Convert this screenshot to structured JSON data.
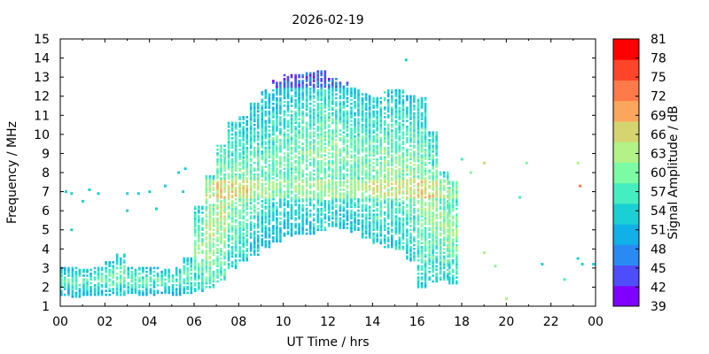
{
  "chart_data": {
    "type": "heatmap",
    "title": "2026-02-19",
    "xlabel": "UT Time / hrs",
    "ylabel": "Frequency / MHz",
    "colorbar_label": "Signal Amplitude / dB",
    "xlim": [
      0,
      24
    ],
    "ylim": [
      1,
      15
    ],
    "x_ticks": [
      "00",
      "02",
      "04",
      "06",
      "08",
      "10",
      "12",
      "14",
      "16",
      "18",
      "20",
      "22",
      "00"
    ],
    "y_ticks": [
      "1",
      "2",
      "3",
      "4",
      "5",
      "6",
      "7",
      "8",
      "9",
      "10",
      "11",
      "12",
      "13",
      "14",
      "15"
    ],
    "colorbar_ticks": [
      "81",
      "78",
      "75",
      "72",
      "69",
      "66",
      "63",
      "60",
      "57",
      "54",
      "51",
      "48",
      "45",
      "42",
      "39"
    ],
    "colorbar_range": [
      39,
      81
    ],
    "colormap": [
      "#7f00ff",
      "#4f4dfb",
      "#2a8af3",
      "#11b0e8",
      "#1bd0d5",
      "#45eec1",
      "#7bfca4",
      "#b2f287",
      "#d6d46e",
      "#fca55c",
      "#ff7a49",
      "#ff4529",
      "#ff0000"
    ],
    "series": [
      {
        "x": 0.0,
        "fmin": 1.6,
        "fmax": 3.1,
        "amp": 54
      },
      {
        "x": 0.5,
        "fmin": 1.5,
        "fmax": 3.1,
        "amp": 55
      },
      {
        "x": 1.0,
        "fmin": 1.6,
        "fmax": 3.0,
        "amp": 54
      },
      {
        "x": 1.5,
        "fmin": 1.6,
        "fmax": 3.1,
        "amp": 55
      },
      {
        "x": 2.0,
        "fmin": 1.6,
        "fmax": 3.4,
        "amp": 56
      },
      {
        "x": 2.5,
        "fmin": 1.6,
        "fmax": 3.8,
        "amp": 56
      },
      {
        "x": 3.0,
        "fmin": 1.7,
        "fmax": 3.1,
        "amp": 55
      },
      {
        "x": 3.5,
        "fmin": 1.6,
        "fmax": 3.1,
        "amp": 55
      },
      {
        "x": 4.0,
        "fmin": 1.6,
        "fmax": 3.1,
        "amp": 54
      },
      {
        "x": 4.5,
        "fmin": 1.7,
        "fmax": 3.0,
        "amp": 55
      },
      {
        "x": 5.0,
        "fmin": 1.6,
        "fmax": 3.1,
        "amp": 54
      },
      {
        "x": 5.5,
        "fmin": 1.7,
        "fmax": 3.6,
        "amp": 55
      },
      {
        "x": 6.0,
        "fmin": 1.8,
        "fmax": 6.2,
        "amp": 58
      },
      {
        "x": 6.5,
        "fmin": 2.0,
        "fmax": 7.8,
        "amp": 60
      },
      {
        "x": 7.0,
        "fmin": 2.3,
        "fmax": 9.4,
        "amp": 60
      },
      {
        "x": 7.5,
        "fmin": 3.0,
        "fmax": 10.6,
        "amp": 58
      },
      {
        "x": 8.0,
        "fmin": 3.4,
        "fmax": 10.9,
        "amp": 57
      },
      {
        "x": 8.5,
        "fmin": 3.7,
        "fmax": 11.6,
        "amp": 56
      },
      {
        "x": 9.0,
        "fmin": 4.1,
        "fmax": 12.3,
        "amp": 55
      },
      {
        "x": 9.5,
        "fmin": 4.4,
        "fmax": 12.8,
        "amp": 55
      },
      {
        "x": 10.0,
        "fmin": 4.7,
        "fmax": 13.1,
        "amp": 55
      },
      {
        "x": 10.5,
        "fmin": 4.8,
        "fmax": 13.1,
        "amp": 56
      },
      {
        "x": 11.0,
        "fmin": 4.8,
        "fmax": 13.2,
        "amp": 56
      },
      {
        "x": 11.5,
        "fmin": 5.0,
        "fmax": 13.3,
        "amp": 57
      },
      {
        "x": 12.0,
        "fmin": 5.2,
        "fmax": 12.9,
        "amp": 57
      },
      {
        "x": 12.5,
        "fmin": 5.1,
        "fmax": 12.7,
        "amp": 56
      },
      {
        "x": 13.0,
        "fmin": 4.9,
        "fmax": 12.4,
        "amp": 56
      },
      {
        "x": 13.5,
        "fmin": 4.6,
        "fmax": 12.1,
        "amp": 56
      },
      {
        "x": 14.0,
        "fmin": 4.3,
        "fmax": 11.9,
        "amp": 57
      },
      {
        "x": 14.5,
        "fmin": 4.1,
        "fmax": 12.3,
        "amp": 57
      },
      {
        "x": 15.0,
        "fmin": 4.0,
        "fmax": 12.3,
        "amp": 57
      },
      {
        "x": 15.5,
        "fmin": 3.4,
        "fmax": 12.0,
        "amp": 57
      },
      {
        "x": 16.0,
        "fmin": 2.0,
        "fmax": 11.9,
        "amp": 58
      },
      {
        "x": 16.5,
        "fmin": 2.3,
        "fmax": 10.1,
        "amp": 58
      },
      {
        "x": 17.0,
        "fmin": 2.4,
        "fmax": 8.0,
        "amp": 58
      },
      {
        "x": 17.4,
        "fmin": 2.2,
        "fmax": 7.5,
        "amp": 58
      }
    ],
    "isolated_points": [
      {
        "x": 0.25,
        "y": 7.0,
        "amp": 55
      },
      {
        "x": 0.5,
        "y": 6.9,
        "amp": 55
      },
      {
        "x": 0.5,
        "y": 5.0,
        "amp": 54
      },
      {
        "x": 1.0,
        "y": 6.5,
        "amp": 55
      },
      {
        "x": 1.3,
        "y": 7.1,
        "amp": 54
      },
      {
        "x": 1.7,
        "y": 6.9,
        "amp": 54
      },
      {
        "x": 3.0,
        "y": 6.9,
        "amp": 55
      },
      {
        "x": 3.5,
        "y": 6.9,
        "amp": 54
      },
      {
        "x": 3.0,
        "y": 6.0,
        "amp": 54
      },
      {
        "x": 4.0,
        "y": 7.0,
        "amp": 54
      },
      {
        "x": 4.3,
        "y": 6.1,
        "amp": 53
      },
      {
        "x": 4.7,
        "y": 7.3,
        "amp": 54
      },
      {
        "x": 5.3,
        "y": 8.0,
        "amp": 55
      },
      {
        "x": 5.5,
        "y": 7.0,
        "amp": 54
      },
      {
        "x": 5.6,
        "y": 8.2,
        "amp": 55
      },
      {
        "x": 15.5,
        "y": 13.9,
        "amp": 54
      },
      {
        "x": 18.0,
        "y": 8.7,
        "amp": 58
      },
      {
        "x": 18.4,
        "y": 8.0,
        "amp": 60
      },
      {
        "x": 19.0,
        "y": 8.5,
        "amp": 66
      },
      {
        "x": 19.0,
        "y": 3.8,
        "amp": 63
      },
      {
        "x": 19.5,
        "y": 3.1,
        "amp": 60
      },
      {
        "x": 20.0,
        "y": 1.4,
        "amp": 63
      },
      {
        "x": 20.6,
        "y": 6.7,
        "amp": 57
      },
      {
        "x": 20.9,
        "y": 8.5,
        "amp": 60
      },
      {
        "x": 21.6,
        "y": 3.2,
        "amp": 54
      },
      {
        "x": 22.6,
        "y": 2.4,
        "amp": 57
      },
      {
        "x": 23.2,
        "y": 8.5,
        "amp": 63
      },
      {
        "x": 23.3,
        "y": 7.3,
        "amp": 72
      },
      {
        "x": 23.2,
        "y": 3.5,
        "amp": 54
      },
      {
        "x": 23.4,
        "y": 3.2,
        "amp": 54
      },
      {
        "x": 23.9,
        "y": 3.2,
        "amp": 54
      }
    ]
  }
}
